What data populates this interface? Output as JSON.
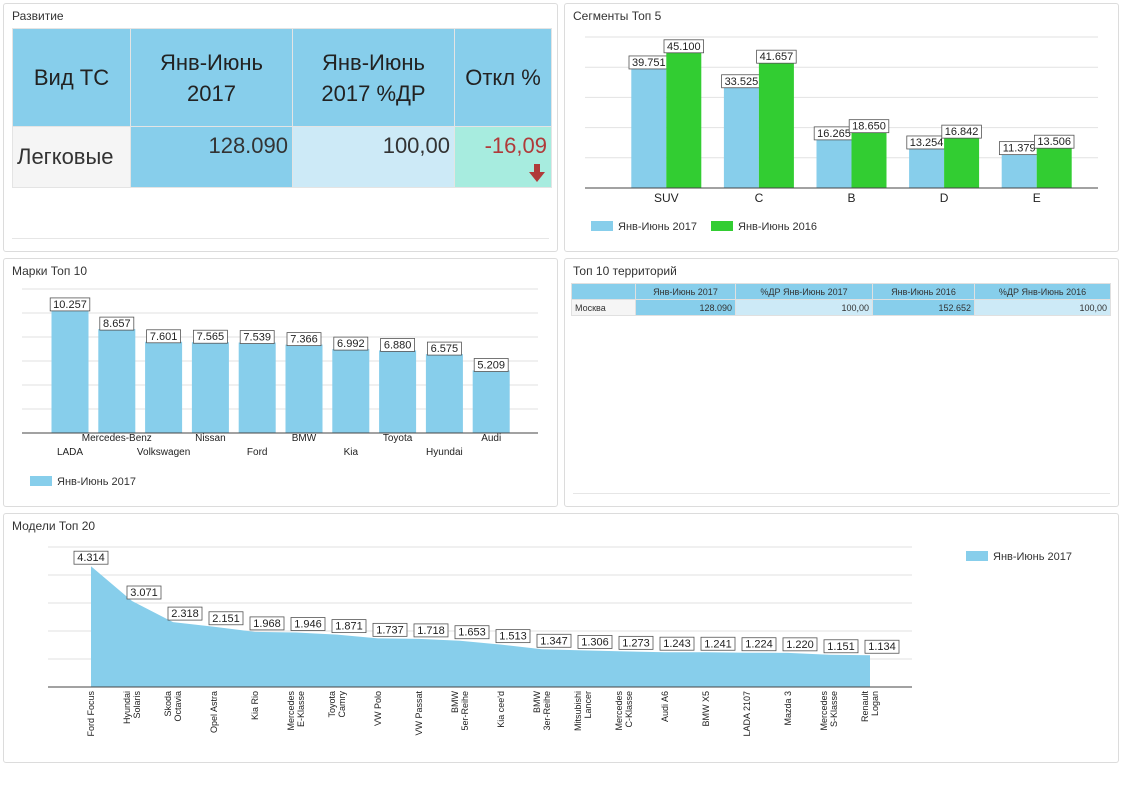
{
  "panels": {
    "development": "Развитие",
    "segments": "Сегменты Топ 5",
    "brands": "Марки Топ 10",
    "territories": "Топ 10 территорий",
    "models": "Модели Топ 20"
  },
  "kpi": {
    "headers": [
      "Вид ТС",
      "Янв-Июнь 2017",
      "Янв-Июнь 2017 %ДР",
      "Откл %"
    ],
    "row": [
      "Легковые",
      "128.090",
      "100,00",
      "-16,09"
    ],
    "trend": "down-arrow-icon",
    "colors": {
      "header": "#87ceeb",
      "value": "#87ceeb",
      "share": "#cdeaf7",
      "dev": "#a7ecdf",
      "negative": "#b03a3a"
    }
  },
  "territories": {
    "headers": [
      "",
      "Янв-Июнь 2017",
      "%ДР Янв-Июнь 2017",
      "Янв-Июнь 2016",
      "%ДР Янв-Июнь 2016"
    ],
    "rows": [
      [
        "Москва",
        "128.090",
        "100,00",
        "152.652",
        "100,00"
      ]
    ]
  },
  "chart_data": [
    {
      "id": "segments",
      "type": "bar",
      "categories": [
        "SUV",
        "C",
        "B",
        "D",
        "E"
      ],
      "series": [
        {
          "name": "Янв-Июнь 2017",
          "values": [
            39751,
            33525,
            16265,
            13254,
            11379
          ],
          "labels": [
            "39.751",
            "33.525",
            "16.265",
            "13.254",
            "11.379"
          ],
          "color": "#87ceeb"
        },
        {
          "name": "Янв-Июнь 2016",
          "values": [
            45100,
            41657,
            18650,
            16842,
            13506
          ],
          "labels": [
            "45.100",
            "41.657",
            "18.650",
            "16.842",
            "13.506"
          ],
          "color": "#32cd32"
        }
      ],
      "ylim": [
        0,
        50000
      ],
      "grid": true,
      "legend": "bottom-left"
    },
    {
      "id": "brands",
      "type": "bar",
      "categories": [
        "LADA",
        "Mercedes-Benz",
        "Volkswagen",
        "Nissan",
        "Ford",
        "BMW",
        "Kia",
        "Toyota",
        "Hyundai",
        "Audi"
      ],
      "series": [
        {
          "name": "Янв-Июнь 2017",
          "values": [
            10257,
            8657,
            7601,
            7565,
            7539,
            7366,
            6992,
            6880,
            6575,
            5209
          ],
          "labels": [
            "10.257",
            "8.657",
            "7.601",
            "7.565",
            "7.539",
            "7.366",
            "6.992",
            "6.880",
            "6.575",
            "5.209"
          ],
          "color": "#87ceeb"
        }
      ],
      "ylim": [
        0,
        12000
      ],
      "grid": true,
      "legend": "bottom-left"
    },
    {
      "id": "models",
      "type": "area",
      "categories": [
        "Ford Focus",
        "Hyundai Solaris",
        "Skoda Octavia",
        "Opel Astra",
        "Kia Rio",
        "Mercedes E-Klasse",
        "Toyota Camry",
        "VW Polo",
        "VW Passat",
        "BMW 5er-Reihe",
        "Kia cee'd",
        "BMW 3er-Reihe",
        "Mitsubishi Lancer",
        "Mercedes C-Klasse",
        "Audi A6",
        "BMW X5",
        "LADA 2107",
        "Mazda 3",
        "Mercedes S-Klasse",
        "Renault Logan"
      ],
      "series": [
        {
          "name": "Янв-Июнь 2017",
          "values": [
            4314,
            3071,
            2318,
            2151,
            1968,
            1946,
            1871,
            1737,
            1718,
            1653,
            1513,
            1347,
            1306,
            1273,
            1243,
            1241,
            1224,
            1220,
            1151,
            1134
          ],
          "labels": [
            "4.314",
            "3.071",
            "2.318",
            "2.151",
            "1.968",
            "1.946",
            "1.871",
            "1.737",
            "1.718",
            "1.653",
            "1.513",
            "1.347",
            "1.306",
            "1.273",
            "1.243",
            "1.241",
            "1.224",
            "1.220",
            "1.151",
            "1.134"
          ],
          "color": "#87ceeb"
        }
      ],
      "ylim": [
        0,
        5000
      ],
      "grid": true,
      "legend": "top-right"
    }
  ]
}
